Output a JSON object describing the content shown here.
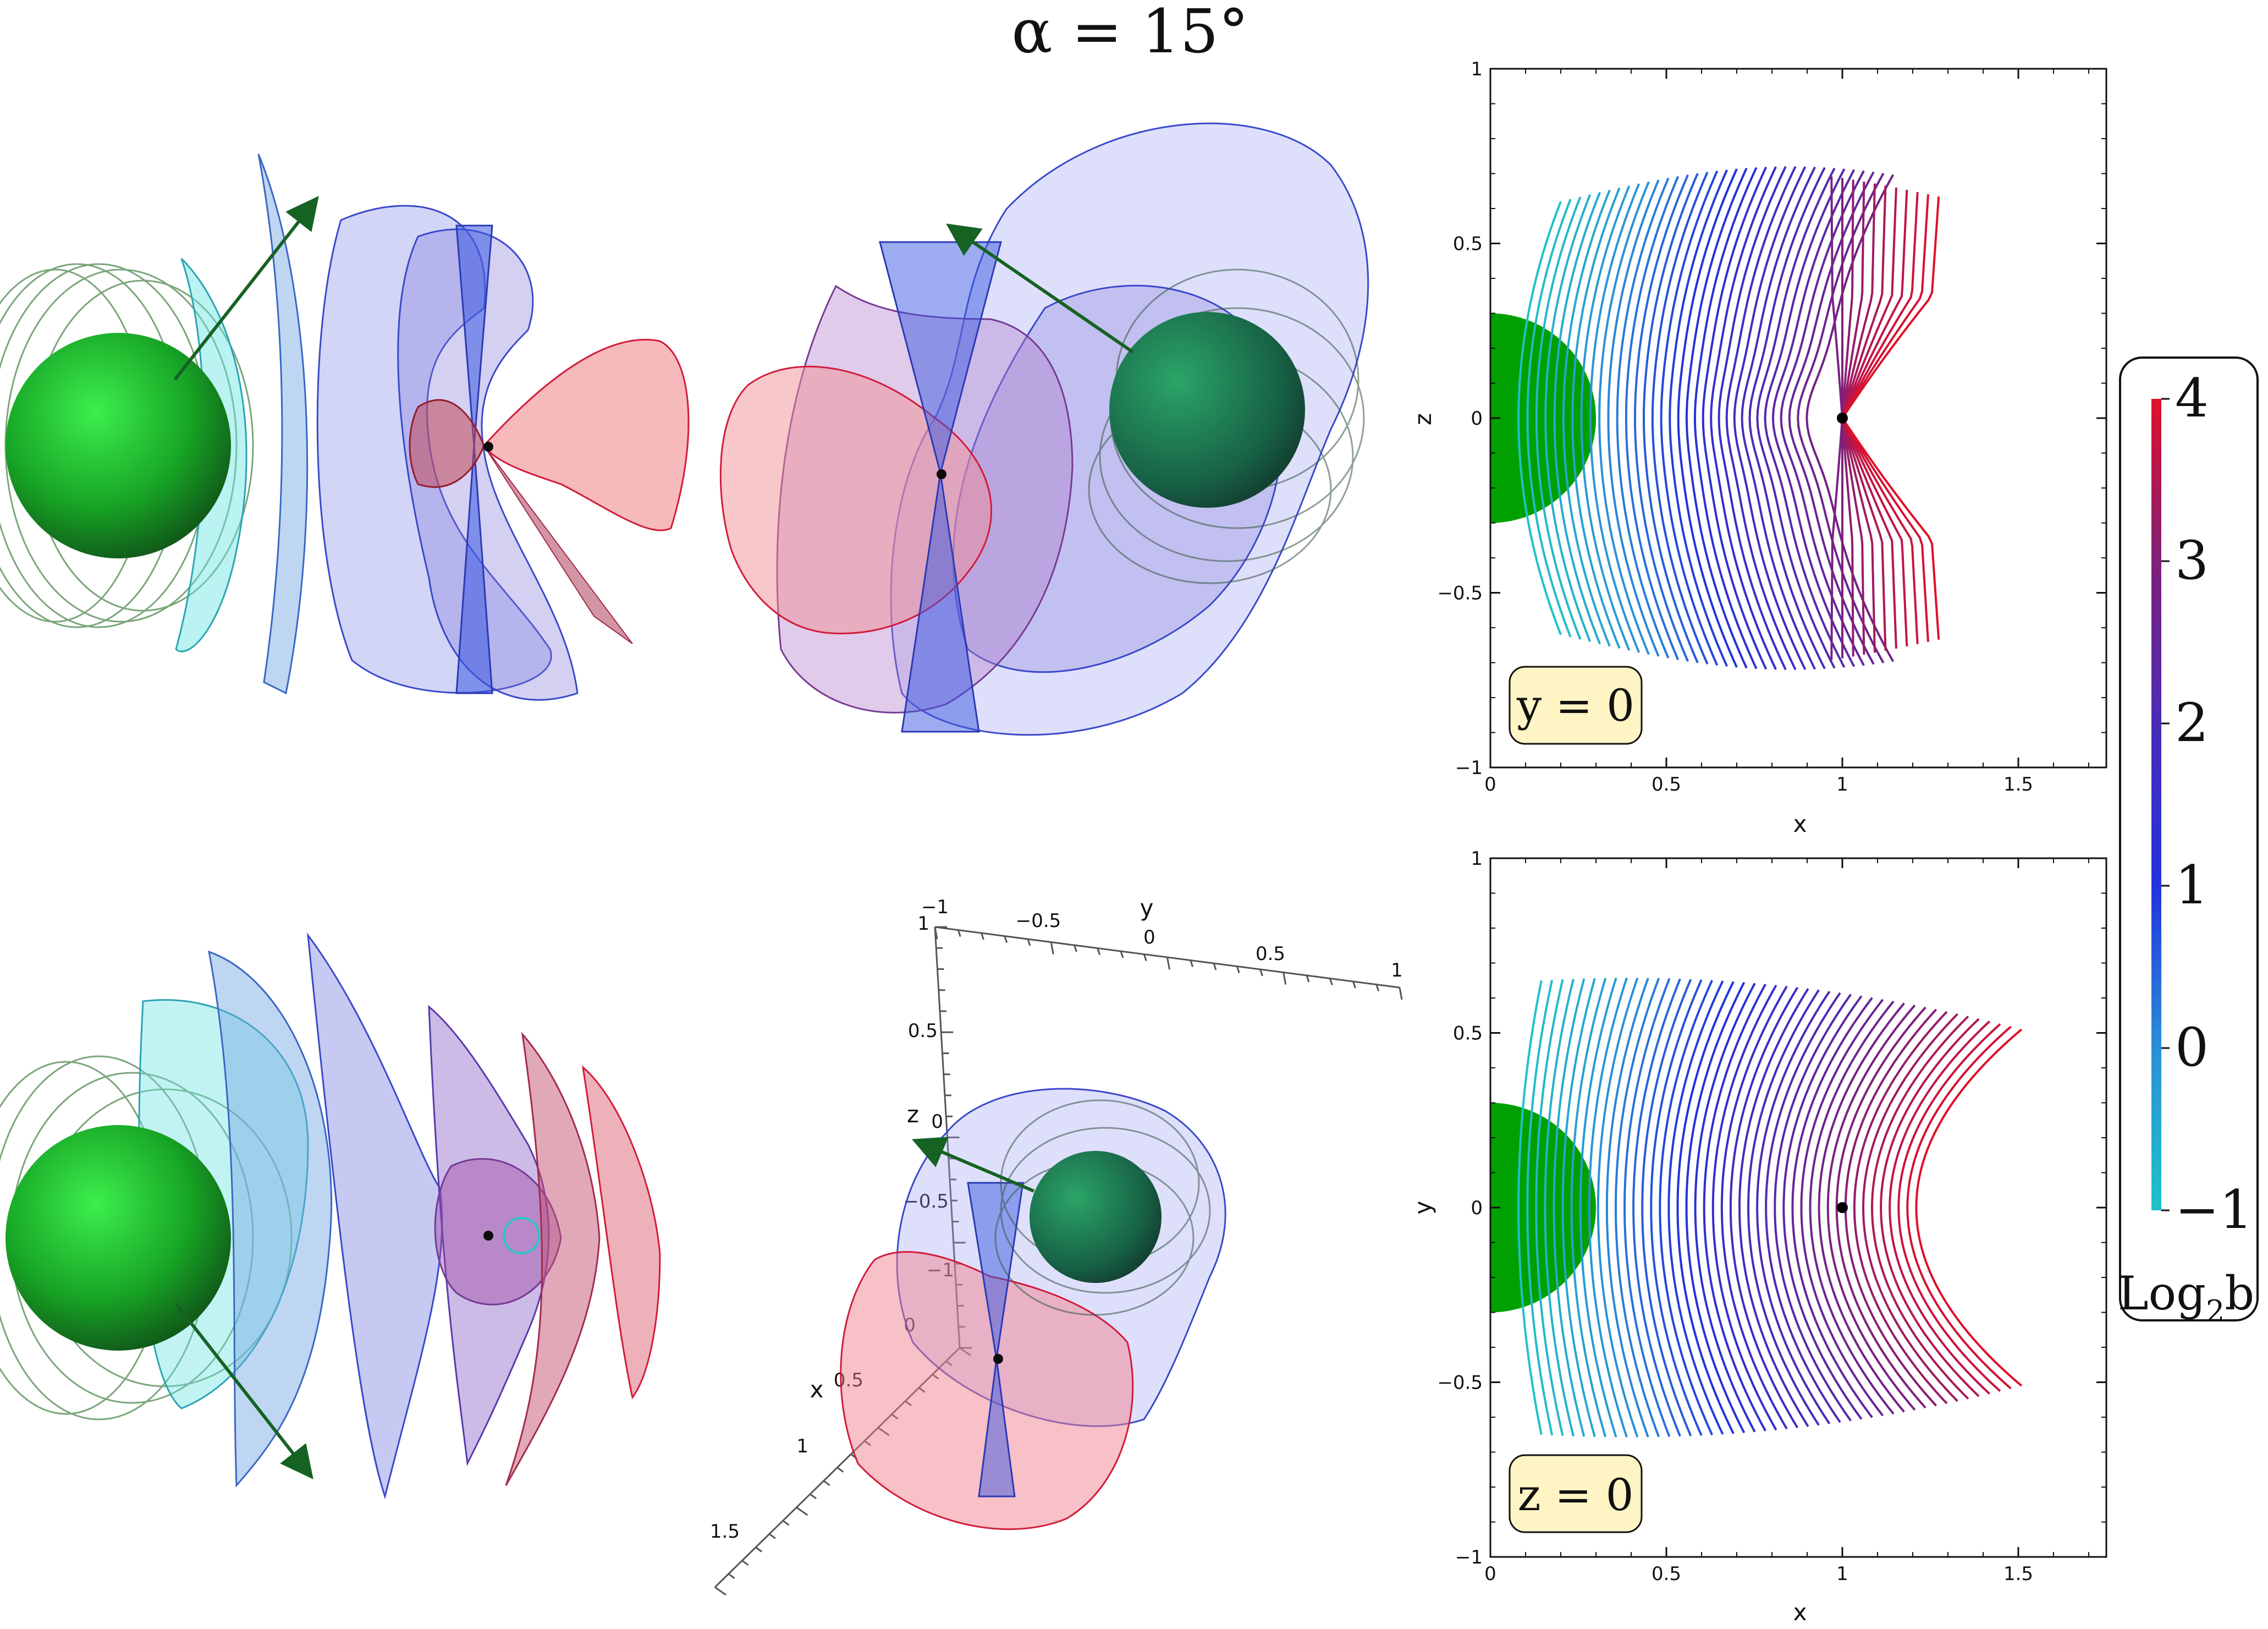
{
  "title": "α = 15°",
  "colors": {
    "low": "#1fc2c8",
    "mid": "#2233dd",
    "high": "#e0102a",
    "green_body": "#00a000",
    "arrow": "#0a5a18",
    "label_box": "#fff4c4"
  },
  "chart_data": [
    {
      "type": "line",
      "name": "xz-plane field lines",
      "xlabel": "x",
      "ylabel": "z",
      "xlim": [
        0,
        1.75
      ],
      "ylim": [
        -1,
        1
      ],
      "xticks": [
        0,
        0.5,
        1,
        1.5
      ],
      "yticks": [
        -1,
        -0.5,
        0,
        0.5,
        1
      ],
      "plane_label": "y = 0",
      "body": {
        "center": [
          0,
          0
        ],
        "radius": 0.3
      },
      "point": [
        1,
        0
      ]
    },
    {
      "type": "line",
      "name": "xy-plane field lines",
      "xlabel": "x",
      "ylabel": "y",
      "xlim": [
        0,
        1.75
      ],
      "ylim": [
        -1,
        1
      ],
      "xticks": [
        0,
        0.5,
        1,
        1.5
      ],
      "yticks": [
        -1,
        -0.5,
        0,
        0.5,
        1
      ],
      "plane_label": "z = 0",
      "body": {
        "center": [
          0,
          0
        ],
        "radius": 0.3
      },
      "point": [
        1,
        0
      ]
    }
  ],
  "colorbar": {
    "label_main": "Log",
    "label_sub": "2",
    "label_end": "b",
    "min": -1,
    "max": 4,
    "ticks": [
      {
        "value": 4,
        "label": "4"
      },
      {
        "value": 3,
        "label": "3"
      },
      {
        "value": 2,
        "label": "2"
      },
      {
        "value": 1,
        "label": "1"
      },
      {
        "value": 0,
        "label": "0"
      },
      {
        "value": -1,
        "label": "−1"
      }
    ]
  },
  "axes3d": {
    "x_label": "x",
    "y_label": "y",
    "z_label": "z",
    "y_ticks": [
      "−1",
      "−0.5",
      "0",
      "0.5",
      "1"
    ],
    "z_ticks": [
      "1",
      "0.5",
      "0",
      "−0.5",
      "−1"
    ],
    "x_ticks": [
      "0",
      "0.5",
      "1",
      "1.5"
    ]
  }
}
